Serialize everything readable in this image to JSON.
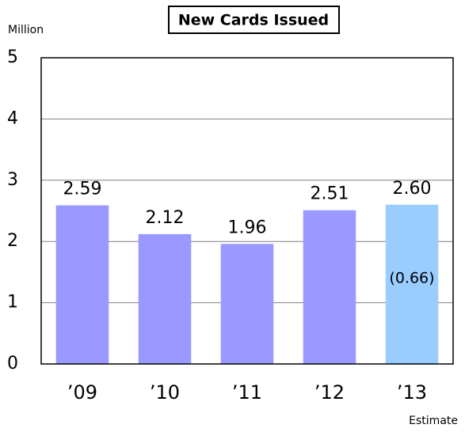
{
  "chart_data": {
    "type": "bar",
    "title": "New Cards Issued",
    "y_label": "Million",
    "categories": [
      "’09",
      "’10",
      "’11",
      "’12",
      "’13"
    ],
    "values": [
      2.59,
      2.12,
      1.96,
      2.51,
      2.6
    ],
    "value_labels": [
      "2.59",
      "2.12",
      "1.96",
      "2.51",
      "2.60"
    ],
    "colors": [
      "#9999ff",
      "#9999ff",
      "#9999ff",
      "#9999ff",
      "#99ccff"
    ],
    "annotations": [
      "(0.66)",
      "Estimate"
    ],
    "ylim": [
      0,
      5
    ],
    "yticks": [
      0,
      1,
      2,
      3,
      4,
      5
    ],
    "grid": true
  }
}
